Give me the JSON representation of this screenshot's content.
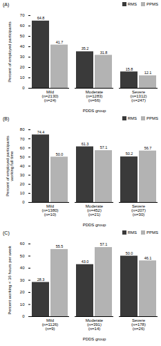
{
  "chart_data": [
    {
      "type": "bar",
      "title": "(A)",
      "x_label": "PDDS group",
      "y_label": "Percent of employed participants",
      "categories": [
        "Mild\n(n=2130)\n(n=24)",
        "Moderate\n(n=1283)\n(n=66)",
        "Severe\n(n=1312)\n(n=247)"
      ],
      "series": [
        {
          "name": "RMS",
          "color": "#3a3a3a",
          "values": [
            64.8,
            35.2,
            15.8
          ],
          "value_labels": [
            "64.8",
            "35.2",
            "15.8"
          ]
        },
        {
          "name": "PPMS",
          "color": "#b3b3b3",
          "values": [
            41.7,
            31.8,
            12.1
          ],
          "value_labels": [
            "41.7",
            "31.8",
            "12.1"
          ]
        }
      ],
      "ylim": [
        0,
        70
      ],
      "yticks": [
        0,
        10,
        20,
        30,
        40,
        50,
        60,
        70
      ],
      "grid": false,
      "legend": "top-right",
      "data_labels": true
    },
    {
      "type": "bar",
      "title": "(B)",
      "x_label": "PDDS group",
      "y_label": "Percent of employed participants working full time",
      "categories": [
        "Mild\n(n=1380)\n(n=10)",
        "Moderate\n(n=452)\n(n=21)",
        "Severe\n(n=207)\n(n=30)"
      ],
      "series": [
        {
          "name": "RMS",
          "color": "#3a3a3a",
          "values": [
            74.4,
            61.3,
            50.2
          ],
          "value_labels": [
            "74.4",
            "61.3",
            "50.2"
          ]
        },
        {
          "name": "PPMS",
          "color": "#b3b3b3",
          "values": [
            50.0,
            57.1,
            56.7
          ],
          "value_labels": [
            "50.0",
            "57.1",
            "56.7"
          ]
        }
      ],
      "ylim": [
        0,
        80
      ],
      "yticks": [
        0,
        10,
        20,
        30,
        40,
        50,
        60,
        70,
        80
      ],
      "grid": false,
      "legend": "top-right",
      "data_labels": true
    },
    {
      "type": "bar",
      "title": "(C)",
      "x_label": "PDDS group",
      "y_label": "Percent working < 36 hours per week",
      "categories": [
        "Mild\n(n=1126)\n(n=9)",
        "Moderate\n(n=391)\n(n=14)",
        "Severe\n(n=178)\n(n=26)"
      ],
      "series": [
        {
          "name": "RMS",
          "color": "#3a3a3a",
          "values": [
            28.3,
            43.0,
            50.0
          ],
          "value_labels": [
            "28.3",
            "43.0",
            "50.0"
          ]
        },
        {
          "name": "PPMS",
          "color": "#b3b3b3",
          "values": [
            55.5,
            57.1,
            46.1
          ],
          "value_labels": [
            "55.5",
            "57.1",
            "46.1"
          ]
        }
      ],
      "ylim": [
        0,
        60
      ],
      "yticks": [
        0,
        10,
        20,
        30,
        40,
        50,
        60
      ],
      "grid": false,
      "legend": "top-right",
      "data_labels": true
    }
  ]
}
